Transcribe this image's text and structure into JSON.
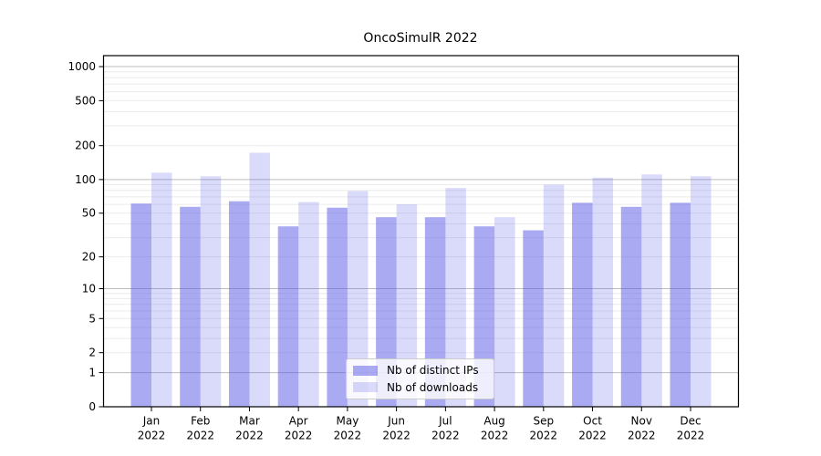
{
  "title": "OncoSimulR 2022",
  "chart_data": {
    "type": "bar",
    "title": "OncoSimulR 2022",
    "y_scale": "log1p",
    "grid": "horizontal",
    "legend_position": "lower-center-inside",
    "categories": [
      "Jan",
      "Feb",
      "Mar",
      "Apr",
      "May",
      "Jun",
      "Jul",
      "Aug",
      "Sep",
      "Oct",
      "Nov",
      "Dec"
    ],
    "x_sublabel": "2022",
    "y_ticks": [
      0,
      1,
      2,
      5,
      10,
      20,
      50,
      100,
      200,
      500,
      1000
    ],
    "ylim": [
      0,
      1250
    ],
    "series": [
      {
        "name": "Nb of distinct IPs",
        "color": "#5555e6",
        "fill_opacity": 0.5,
        "values": [
          61,
          57,
          64,
          38,
          56,
          46,
          46,
          38,
          35,
          62,
          57,
          62
        ]
      },
      {
        "name": "Nb of downloads",
        "color": "#5555e6",
        "fill_opacity": 0.22,
        "values": [
          115,
          107,
          173,
          63,
          79,
          60,
          84,
          46,
          90,
          104,
          111,
          107
        ]
      }
    ],
    "colors": {
      "bar_dark_rendered": "#aaaaf2",
      "bar_light_rendered": "#dadaf9",
      "grid_major": "#bdbdbd",
      "grid_minor": "#ebebeb",
      "axis": "#000000"
    }
  }
}
